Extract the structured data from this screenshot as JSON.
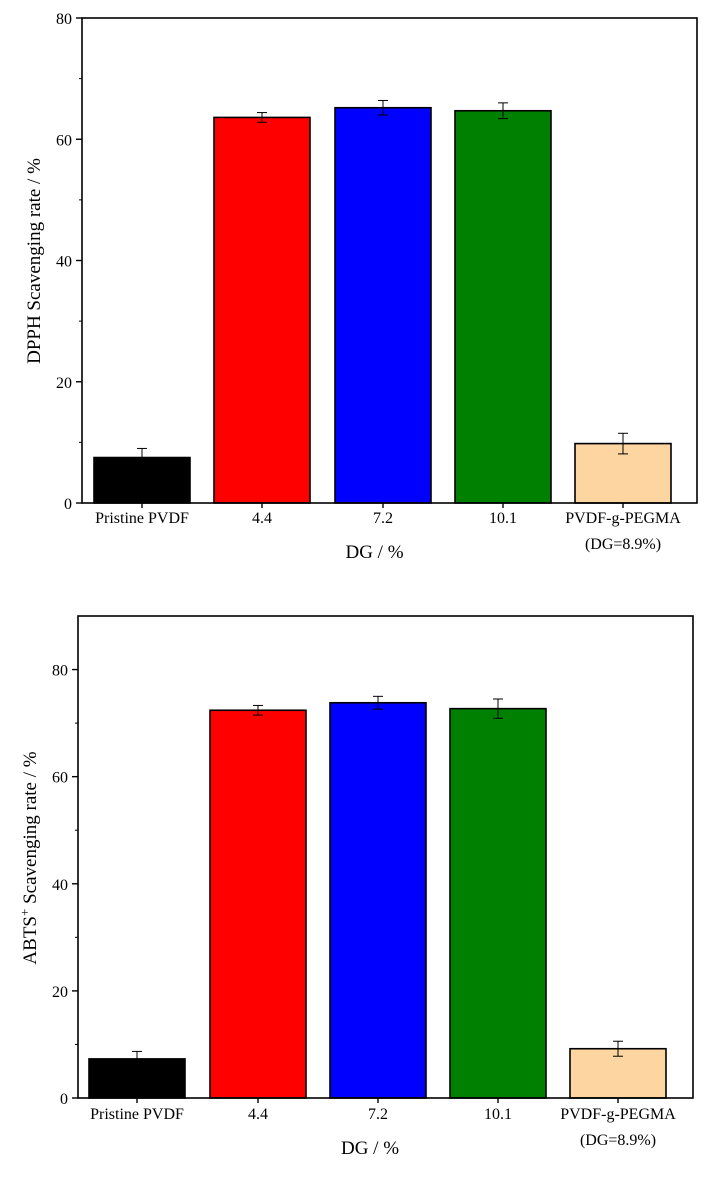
{
  "chart_data": [
    {
      "type": "bar",
      "categories": [
        "Pristine PVDF",
        "4.4",
        "7.2",
        "10.1",
        "PVDF-g-PEGMA"
      ],
      "category_sublabels": [
        "",
        "",
        "",
        "",
        "(DG=8.9%)"
      ],
      "values": [
        7.5,
        63.6,
        65.2,
        64.7,
        9.8
      ],
      "errors": [
        1.5,
        0.8,
        1.2,
        1.3,
        1.7
      ],
      "colors": [
        "#000000",
        "#ff0000",
        "#0000ff",
        "#008000",
        "#fdd5a0"
      ],
      "title": "",
      "xlabel": "DG / %",
      "ylabel": "DPPH Scavenging rate / %",
      "ylim": [
        0,
        80
      ],
      "yticks": [
        0,
        20,
        40,
        60,
        80
      ],
      "grid": false
    },
    {
      "type": "bar",
      "categories": [
        "Pristine PVDF",
        "4.4",
        "7.2",
        "10.1",
        "PVDF-g-PEGMA"
      ],
      "category_sublabels": [
        "",
        "",
        "",
        "",
        "(DG=8.9%)"
      ],
      "values": [
        7.3,
        72.4,
        73.8,
        72.7,
        9.2
      ],
      "errors": [
        1.4,
        0.9,
        1.2,
        1.8,
        1.4
      ],
      "colors": [
        "#000000",
        "#ff0000",
        "#0000ff",
        "#008000",
        "#fdd5a0"
      ],
      "title": "",
      "xlabel": "DG / %",
      "ylabel": "ABTS",
      "ylabel_superscript": "+",
      "ylabel_suffix": " Scavenging rate / %",
      "ylim": [
        0,
        90
      ],
      "yticks": [
        0,
        20,
        40,
        60,
        80
      ],
      "grid": false
    }
  ]
}
